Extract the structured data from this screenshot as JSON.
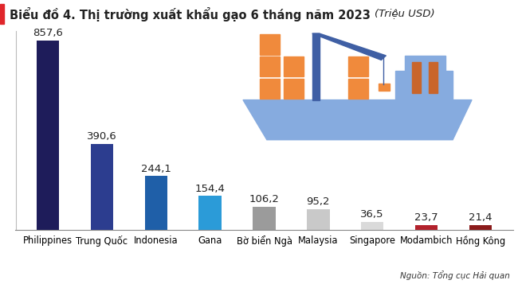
{
  "chart_data": {
    "type": "bar",
    "title": "Biểu đồ 4. Thị trường xuất khẩu gạo 6 tháng năm 2023",
    "subtitle": "(Triệu USD)",
    "categories": [
      "Philippines",
      "Trung Quốc",
      "Indonesia",
      "Gana",
      "Bờ biển Ngà",
      "Malaysia",
      "Singapore",
      "Modambich",
      "Hồng Kông"
    ],
    "values": [
      857.6,
      390.6,
      244.1,
      154.4,
      106.2,
      95.2,
      36.5,
      23.7,
      21.4
    ],
    "value_labels": [
      "857,6",
      "390,6",
      "244,1",
      "154,4",
      "106,2",
      "95,2",
      "36,5",
      "23,7",
      "21,4"
    ],
    "colors": [
      "#1e1c5a",
      "#2c3d8f",
      "#1f5fa8",
      "#2b9bd8",
      "#9b9b9b",
      "#c9c9c9",
      "#dadada",
      "#b3222c",
      "#8b1b1b"
    ],
    "ylim": [
      0,
      900
    ],
    "tick_labels": "x",
    "data_labels": true,
    "grid": false,
    "annotations": [
      "Nguồn: Tổng cục Hải quan"
    ]
  }
}
